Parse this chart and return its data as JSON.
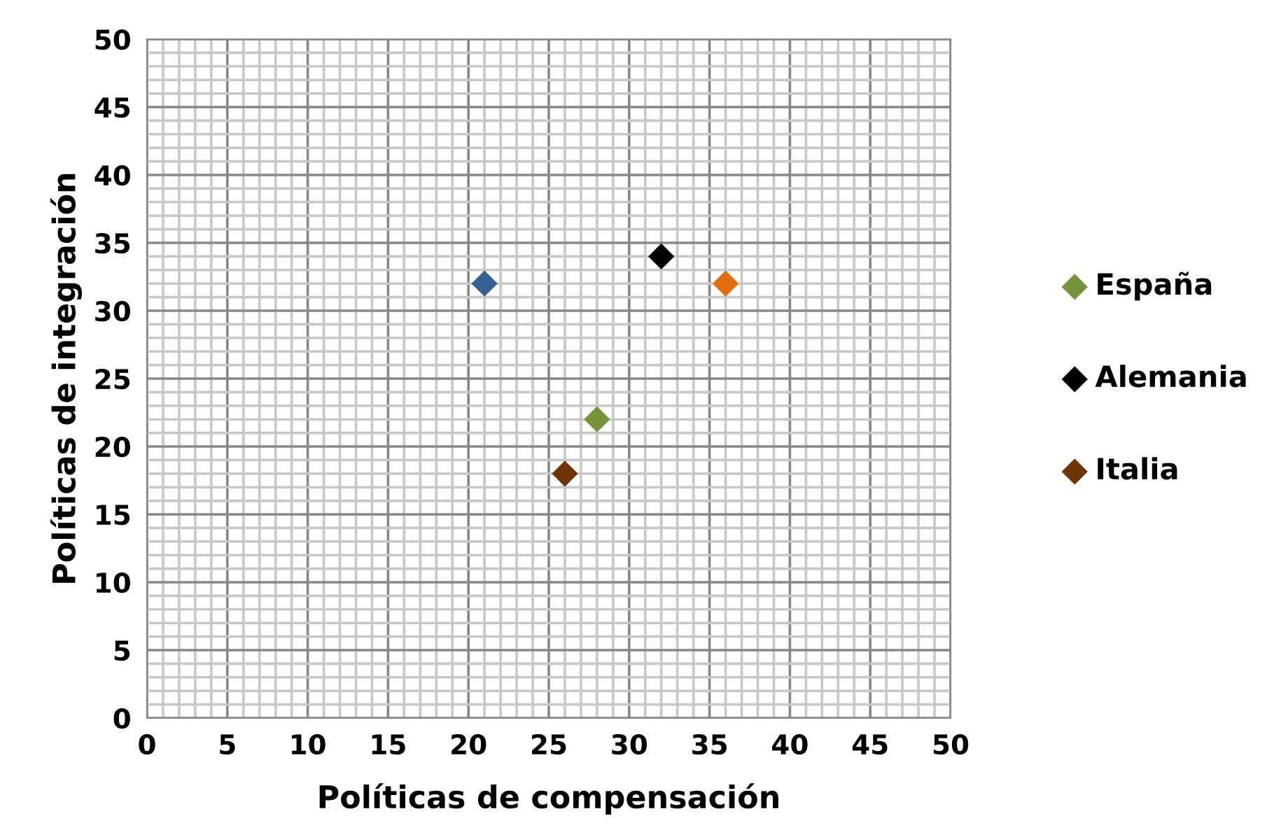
{
  "chart_data": {
    "type": "scatter",
    "xlabel": "Políticas de compensación",
    "ylabel": "Políticas de integración",
    "xlim": [
      0,
      50
    ],
    "ylim": [
      0,
      50
    ],
    "xticks": [
      0,
      5,
      10,
      15,
      20,
      25,
      30,
      35,
      40,
      45,
      50
    ],
    "yticks": [
      0,
      5,
      10,
      15,
      20,
      25,
      30,
      35,
      40,
      45,
      50
    ],
    "grid": true,
    "legend": "right",
    "marker": "diamond",
    "series": [
      {
        "name": "España",
        "color": "#77933c",
        "x": [
          28
        ],
        "values": [
          22
        ]
      },
      {
        "name": "Alemania",
        "color": "#000000",
        "x": [
          32
        ],
        "values": [
          34
        ]
      },
      {
        "name": "Italia",
        "color": "#6f3405",
        "x": [
          26
        ],
        "values": [
          18
        ]
      },
      {
        "color": "#376092",
        "x": [
          21
        ],
        "values": [
          32
        ]
      },
      {
        "color": "#e46c0a",
        "x": [
          36
        ],
        "values": [
          32
        ]
      }
    ]
  }
}
